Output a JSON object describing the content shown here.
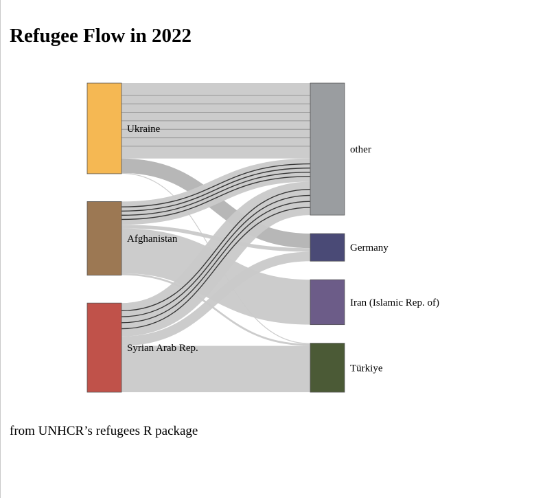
{
  "title": "Refugee Flow in 2022",
  "caption": "from UNHCR’s refugees R package",
  "chart_data": {
    "type": "sankey",
    "nodes": [
      {
        "name": "Ukraine",
        "color": "#f5b853",
        "side": "source"
      },
      {
        "name": "Afghanistan",
        "color": "#9c7853",
        "side": "source"
      },
      {
        "name": "Syrian Arab Rep.",
        "color": "#c0524a",
        "side": "source"
      },
      {
        "name": "other",
        "color": "#9a9da0",
        "side": "target"
      },
      {
        "name": "Germany",
        "color": "#4a4a76",
        "side": "target"
      },
      {
        "name": "Iran (Islamic Rep. of)",
        "color": "#6c5c88",
        "side": "target"
      },
      {
        "name": "Türkiye",
        "color": "#4b5a36",
        "side": "target"
      }
    ],
    "links": [
      {
        "source": "Ukraine",
        "target": "other",
        "value": 5.2
      },
      {
        "source": "Ukraine",
        "target": "Germany",
        "value": 1.0
      },
      {
        "source": "Ukraine",
        "target": "Türkiye",
        "value": 0.05
      },
      {
        "source": "Afghanistan",
        "target": "other",
        "value": 1.6
      },
      {
        "source": "Afghanistan",
        "target": "Germany",
        "value": 0.25
      },
      {
        "source": "Afghanistan",
        "target": "Iran (Islamic Rep. of)",
        "value": 3.1
      },
      {
        "source": "Afghanistan",
        "target": "Türkiye",
        "value": 0.13
      },
      {
        "source": "Syrian Arab Rep.",
        "target": "other",
        "value": 2.3
      },
      {
        "source": "Syrian Arab Rep.",
        "target": "Germany",
        "value": 0.65
      },
      {
        "source": "Syrian Arab Rep.",
        "target": "Türkiye",
        "value": 3.2
      }
    ]
  }
}
